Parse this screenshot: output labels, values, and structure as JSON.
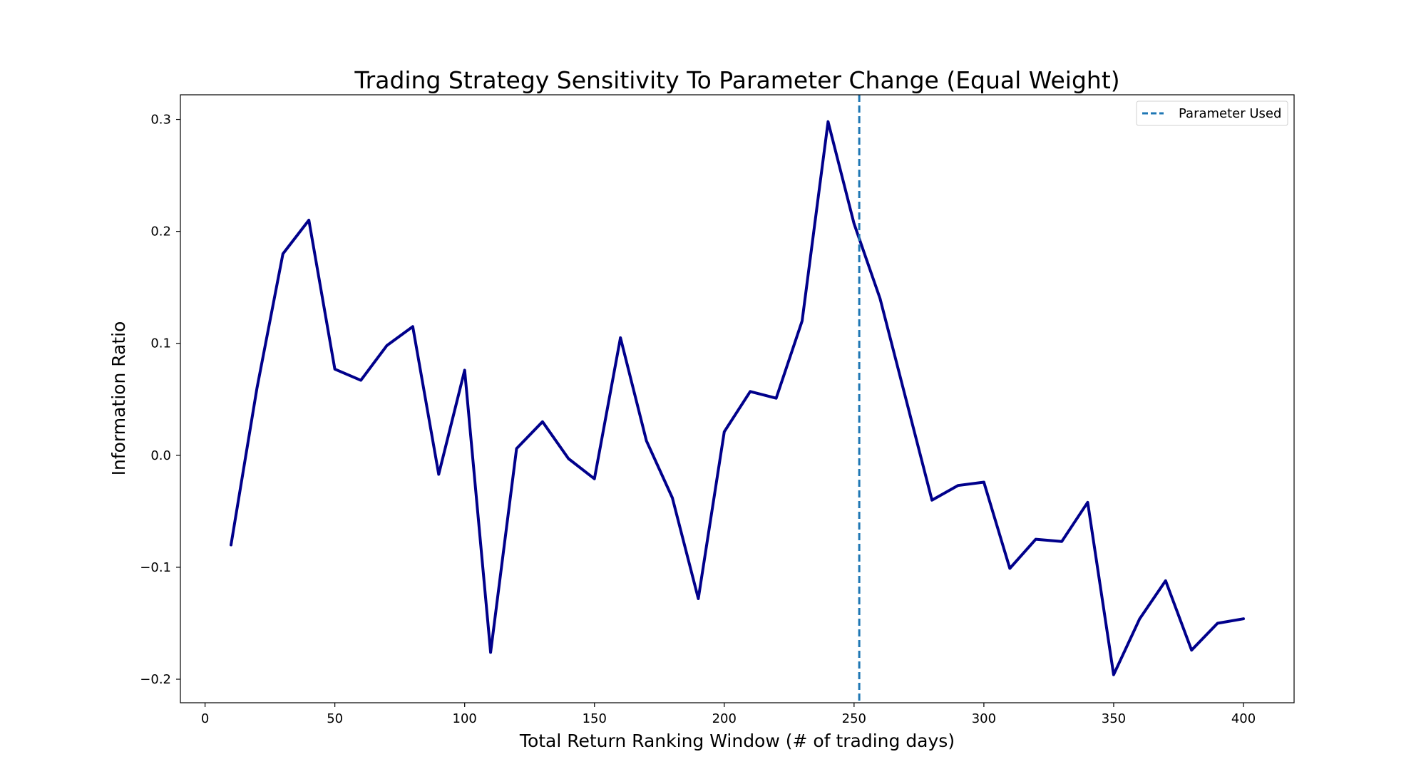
{
  "chart_data": {
    "type": "line",
    "title": "Trading Strategy Sensitivity To Parameter Change (Equal Weight)",
    "xlabel": "Total Return Ranking Window (# of trading days)",
    "ylabel": "Information Ratio",
    "xlim": [
      -9.5,
      419.5
    ],
    "ylim": [
      -0.221,
      0.322
    ],
    "xticks": [
      0,
      50,
      100,
      150,
      200,
      250,
      300,
      350,
      400
    ],
    "xtick_labels": [
      "0",
      "50",
      "100",
      "150",
      "200",
      "250",
      "300",
      "350",
      "400"
    ],
    "yticks": [
      -0.2,
      -0.1,
      0.0,
      0.1,
      0.2,
      0.3
    ],
    "ytick_labels": [
      "−0.2",
      "−0.1",
      "0.0",
      "0.1",
      "0.2",
      "0.3"
    ],
    "grid": false,
    "legend_position": "top-right",
    "series": [
      {
        "color": "#00008b",
        "x": [
          10,
          20,
          30,
          40,
          50,
          60,
          70,
          80,
          90,
          100,
          110,
          120,
          130,
          140,
          150,
          160,
          170,
          180,
          190,
          200,
          210,
          220,
          230,
          240,
          250,
          260,
          270,
          280,
          290,
          300,
          310,
          320,
          330,
          340,
          350,
          360,
          370,
          380,
          390,
          400
        ],
        "y": [
          -0.08,
          0.06,
          0.18,
          0.21,
          0.077,
          0.067,
          0.098,
          0.115,
          -0.017,
          0.076,
          -0.176,
          0.006,
          0.03,
          -0.003,
          -0.021,
          0.105,
          0.013,
          -0.038,
          -0.128,
          0.021,
          0.057,
          0.051,
          0.12,
          0.298,
          0.207,
          0.14,
          0.05,
          -0.04,
          -0.027,
          -0.024,
          -0.101,
          -0.075,
          -0.077,
          -0.042,
          -0.196,
          -0.146,
          -0.112,
          -0.174,
          -0.15,
          -0.146
        ]
      }
    ],
    "vline": {
      "name": "Parameter Used",
      "x": 252,
      "color": "#1f77b4",
      "style": "dashed"
    }
  }
}
